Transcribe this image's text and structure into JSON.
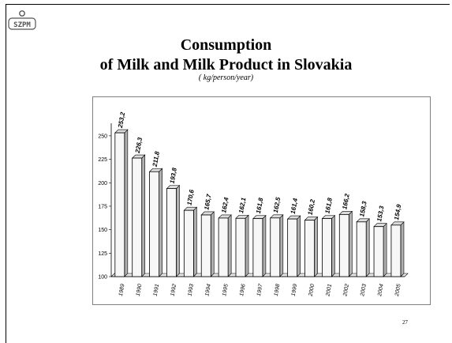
{
  "logo": {
    "text": "SZPM",
    "icon": "szpm-logo"
  },
  "slide": {
    "title_line1": "Consumption",
    "title_line2": "of Milk  and Milk Product in Slovakia",
    "subtitle": "( kg/person/year)",
    "page_number": "27"
  },
  "chart_data": {
    "type": "bar",
    "title": "",
    "xlabel": "",
    "ylabel": "",
    "ylim": [
      100,
      260
    ],
    "yticks": [
      "100",
      "125",
      "150",
      "175",
      "200",
      "225",
      "250"
    ],
    "categories": [
      "1989",
      "1990",
      "1991",
      "1992",
      "1993",
      "1994",
      "1995",
      "1996",
      "1997",
      "1998",
      "1999",
      "2000",
      "2001",
      "2002",
      "2003",
      "2004",
      "2005"
    ],
    "values": [
      253.2,
      226.3,
      211.8,
      193.8,
      170.6,
      165.7,
      162.4,
      162.1,
      161.8,
      162.5,
      161.4,
      160.2,
      161.8,
      166.2,
      158.3,
      153.3,
      154.9
    ],
    "labels": [
      "253,2",
      "226,3",
      "211,8",
      "193,8",
      "170,6",
      "165,7",
      "162,4",
      "162,1",
      "161,8",
      "162,5",
      "161,4",
      "160,2",
      "161,8",
      "166,2",
      "158,3",
      "153,3",
      "154,9"
    ],
    "grid": false,
    "legend": "none",
    "colors": {
      "bar_face": "#f7f7f7",
      "bar_side": "#b0b0b0",
      "bar_top": "#dcdcdc",
      "outline": "#000000"
    }
  }
}
